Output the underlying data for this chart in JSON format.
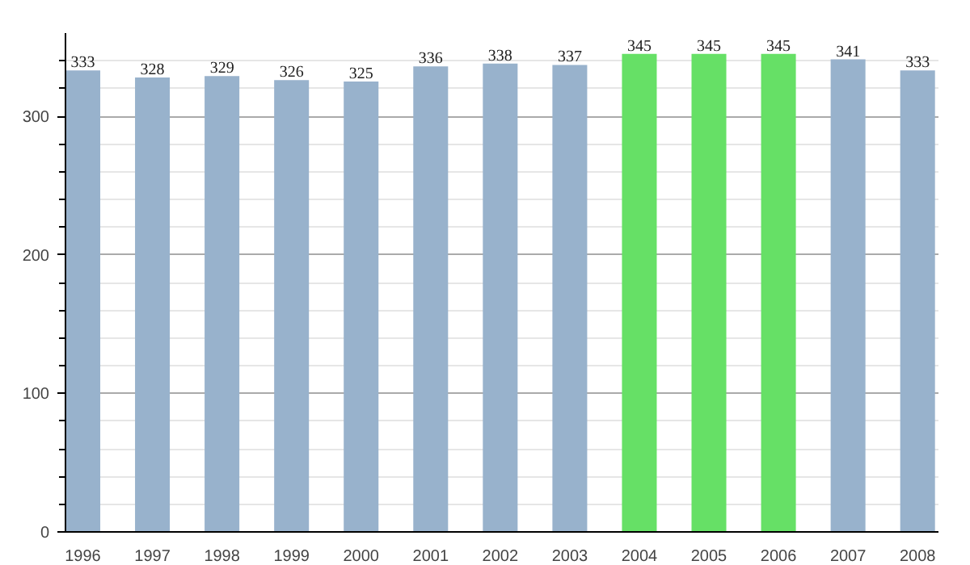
{
  "chart_data": {
    "type": "bar",
    "categories": [
      "1996",
      "1997",
      "1998",
      "1999",
      "2000",
      "2001",
      "2002",
      "2003",
      "2004",
      "2005",
      "2006",
      "2007",
      "2008"
    ],
    "values": [
      333,
      328,
      329,
      326,
      325,
      336,
      338,
      337,
      345,
      345,
      345,
      341,
      333
    ],
    "colors": [
      "#98b2cc",
      "#98b2cc",
      "#98b2cc",
      "#98b2cc",
      "#98b2cc",
      "#98b2cc",
      "#98b2cc",
      "#98b2cc",
      "#66e066",
      "#66e066",
      "#66e066",
      "#98b2cc",
      "#98b2cc"
    ],
    "data_labels": true,
    "ylim": [
      0,
      360
    ],
    "yticks": [
      0,
      {
        "value": 20,
        "label": null
      },
      {
        "value": 40,
        "label": null
      },
      {
        "value": 60,
        "label": null
      },
      {
        "value": 80,
        "label": null
      },
      100,
      {
        "value": 120,
        "label": null
      },
      {
        "value": 140,
        "label": null
      },
      {
        "value": 160,
        "label": null
      },
      {
        "value": 180,
        "label": null
      },
      200,
      {
        "value": 220,
        "label": null
      },
      {
        "value": 240,
        "label": null
      },
      {
        "value": 260,
        "label": null
      },
      {
        "value": 280,
        "label": null
      },
      300,
      {
        "value": 320,
        "label": null
      },
      {
        "value": 340,
        "label": null
      }
    ],
    "grid": "y"
  }
}
